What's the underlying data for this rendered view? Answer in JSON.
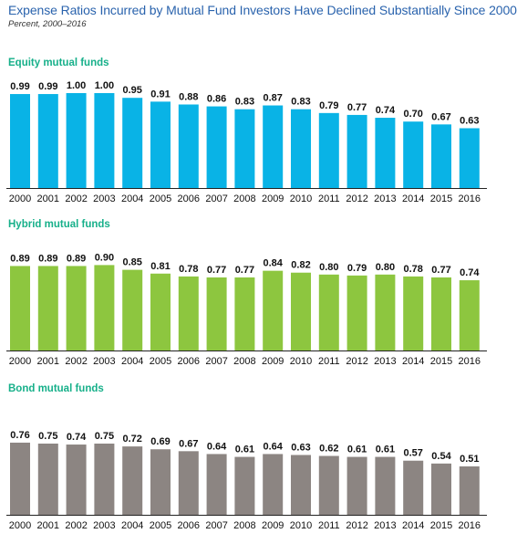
{
  "title": "Expense Ratios Incurred by Mutual Fund Investors Have Declined Substantially Since 2000",
  "subtitle": "Percent, 2000–2016",
  "chart_data": [
    {
      "type": "bar",
      "title": "Equity mutual funds",
      "color": "#09b3e6",
      "categories": [
        "2000",
        "2001",
        "2002",
        "2003",
        "2004",
        "2005",
        "2006",
        "2007",
        "2008",
        "2009",
        "2010",
        "2011",
        "2012",
        "2013",
        "2014",
        "2015",
        "2016"
      ],
      "values": [
        0.99,
        0.99,
        1.0,
        1.0,
        0.95,
        0.91,
        0.88,
        0.86,
        0.83,
        0.87,
        0.83,
        0.79,
        0.77,
        0.74,
        0.7,
        0.67,
        0.63
      ],
      "labels": [
        "0.99",
        "0.99",
        "1.00",
        "1.00",
        "0.95",
        "0.91",
        "0.88",
        "0.86",
        "0.83",
        "0.87",
        "0.83",
        "0.79",
        "0.77",
        "0.74",
        "0.70",
        "0.67",
        "0.63"
      ]
    },
    {
      "type": "bar",
      "title": "Hybrid mutual funds",
      "color": "#8dc63f",
      "categories": [
        "2000",
        "2001",
        "2002",
        "2003",
        "2004",
        "2005",
        "2006",
        "2007",
        "2008",
        "2009",
        "2010",
        "2011",
        "2012",
        "2013",
        "2014",
        "2015",
        "2016"
      ],
      "values": [
        0.89,
        0.89,
        0.89,
        0.9,
        0.85,
        0.81,
        0.78,
        0.77,
        0.77,
        0.84,
        0.82,
        0.8,
        0.79,
        0.8,
        0.78,
        0.77,
        0.74
      ],
      "labels": [
        "0.89",
        "0.89",
        "0.89",
        "0.90",
        "0.85",
        "0.81",
        "0.78",
        "0.77",
        "0.77",
        "0.84",
        "0.82",
        "0.80",
        "0.79",
        "0.80",
        "0.78",
        "0.77",
        "0.74"
      ]
    },
    {
      "type": "bar",
      "title": "Bond mutual funds",
      "color": "#8c8582",
      "categories": [
        "2000",
        "2001",
        "2002",
        "2003",
        "2004",
        "2005",
        "2006",
        "2007",
        "2008",
        "2009",
        "2010",
        "2011",
        "2012",
        "2013",
        "2014",
        "2015",
        "2016"
      ],
      "values": [
        0.76,
        0.75,
        0.74,
        0.75,
        0.72,
        0.69,
        0.67,
        0.64,
        0.61,
        0.64,
        0.63,
        0.62,
        0.61,
        0.61,
        0.57,
        0.54,
        0.51
      ],
      "labels": [
        "0.76",
        "0.75",
        "0.74",
        "0.75",
        "0.72",
        "0.69",
        "0.67",
        "0.64",
        "0.61",
        "0.64",
        "0.63",
        "0.62",
        "0.61",
        "0.61",
        "0.57",
        "0.54",
        "0.51"
      ]
    }
  ]
}
